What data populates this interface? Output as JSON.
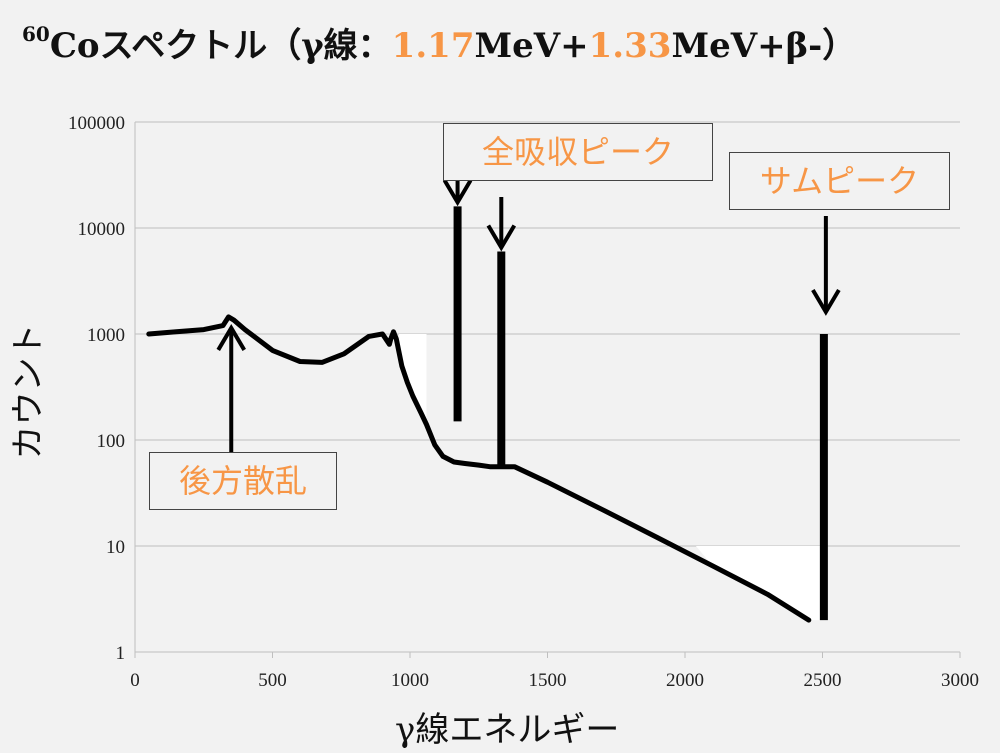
{
  "title": {
    "sup": "60",
    "elem": "Co",
    "text1": "スペクトル（γ線：",
    "e1": "1.17",
    "unit1": "MeV+",
    "e2": "1.33",
    "unit2": "MeV+β-）"
  },
  "colors": {
    "accent": "#f79646",
    "line": "#000000",
    "grid": "#bfbfbf",
    "background": "#f2f2f2"
  },
  "chart_data": {
    "type": "line",
    "xlabel": "γ線エネルギー",
    "ylabel": "カウント",
    "xlim": [
      0,
      3000
    ],
    "ylim": [
      1,
      100000
    ],
    "yscale": "log",
    "grid": true,
    "x_ticks": [
      "0",
      "500",
      "1000",
      "1500",
      "2000",
      "2500",
      "3000"
    ],
    "y_ticks": [
      "1",
      "10",
      "100",
      "1000",
      "10000",
      "100000"
    ],
    "series": [
      {
        "x": [
          50,
          150,
          250,
          320,
          340,
          360,
          400,
          500,
          600,
          680,
          760,
          850,
          900,
          925,
          930,
          940,
          950,
          970,
          990,
          1010,
          1040,
          1060,
          1090,
          1120,
          1160,
          1200,
          1250,
          1290,
          1330,
          1380,
          1500,
          1700,
          1900,
          2100,
          2300,
          2450
        ],
        "y": [
          1000,
          1050,
          1100,
          1200,
          1450,
          1350,
          1100,
          700,
          550,
          540,
          650,
          950,
          1000,
          800,
          900,
          1050,
          900,
          500,
          350,
          260,
          180,
          140,
          90,
          70,
          62,
          60,
          58,
          56,
          56,
          56,
          40,
          22,
          12,
          6.5,
          3.5,
          2
        ]
      }
    ],
    "peaks": [
      {
        "x": 1173,
        "y_top": 16000,
        "y_base": 150
      },
      {
        "x": 1332,
        "y_top": 6000,
        "y_base": 56
      },
      {
        "x": 2505,
        "y_top": 1000,
        "y_base": 2
      }
    ],
    "annotations": [
      {
        "label": "全吸収ピーク",
        "points_to": "1.17 / 1.33 MeV peaks"
      },
      {
        "label": "サムピーク",
        "points_to": "2.5 MeV peak"
      },
      {
        "label": "後方散乱",
        "points_to": "backscatter bump"
      }
    ]
  }
}
